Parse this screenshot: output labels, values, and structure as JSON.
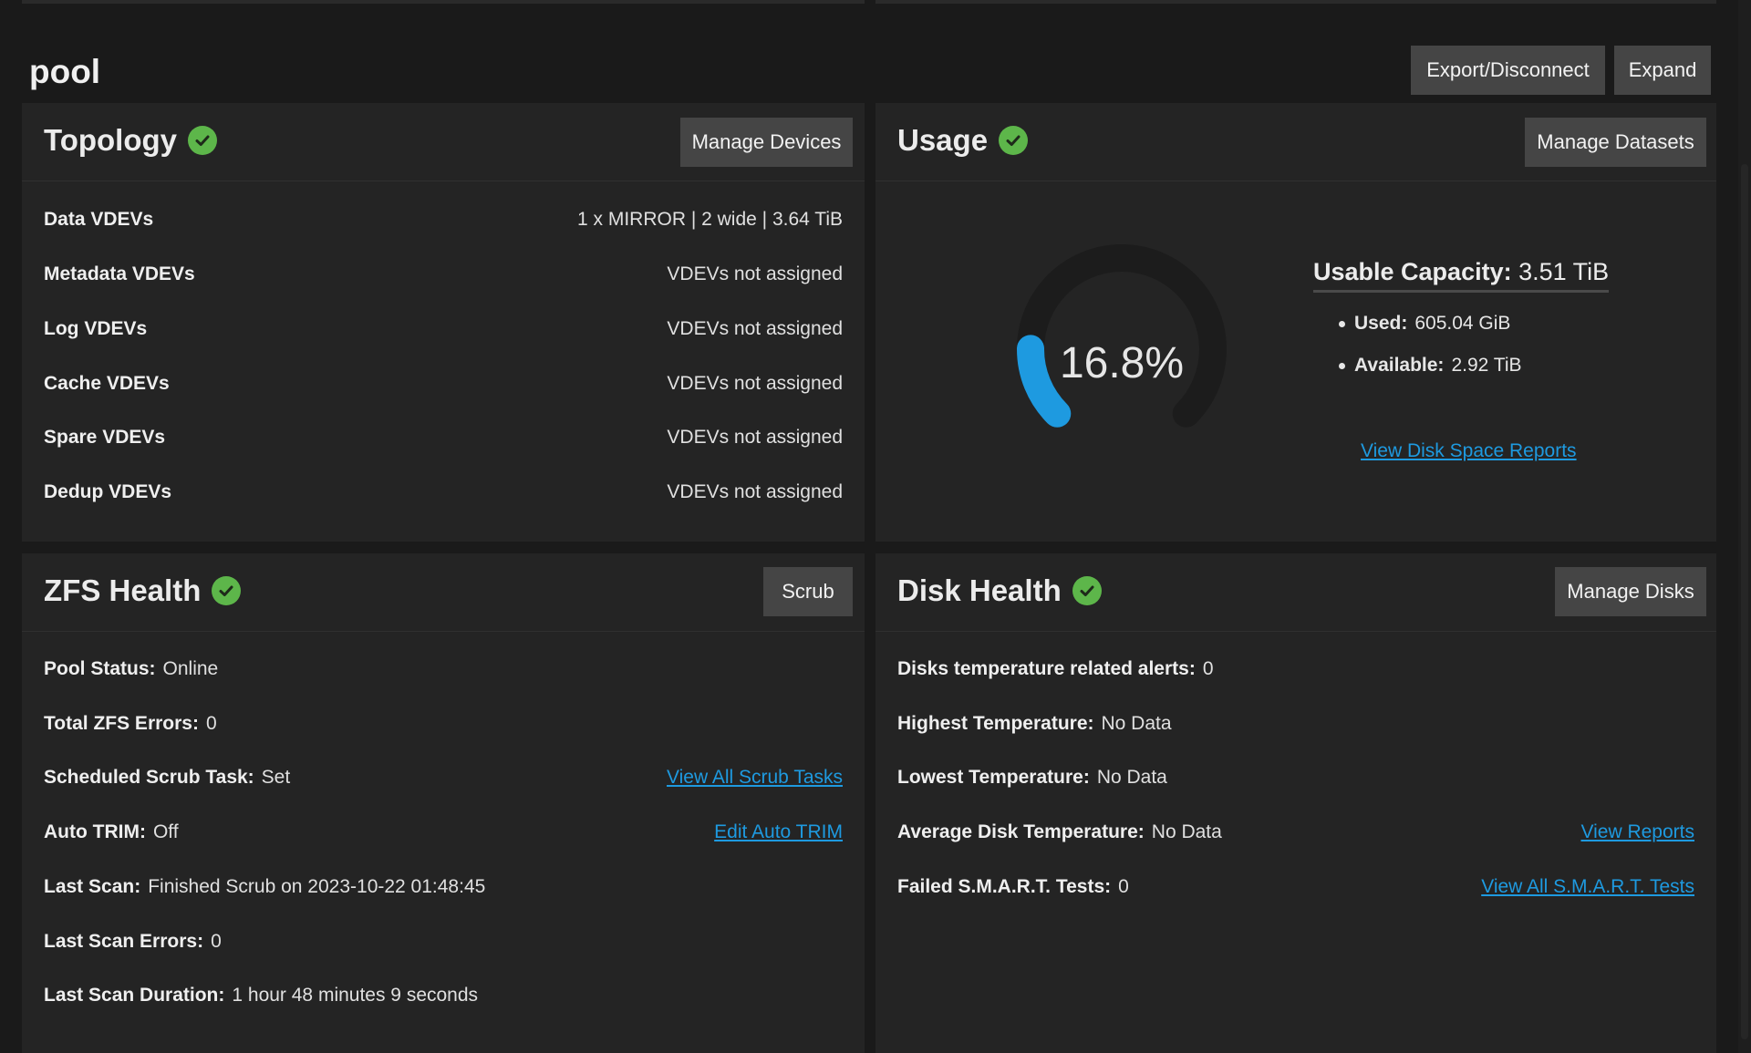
{
  "pool": {
    "title": "pool",
    "export_label": "Export/Disconnect",
    "expand_label": "Expand"
  },
  "topology": {
    "title": "Topology",
    "button": "Manage Devices",
    "rows": [
      {
        "label": "Data VDEVs",
        "value": "1 x MIRROR | 2 wide | 3.64 TiB"
      },
      {
        "label": "Metadata VDEVs",
        "value": "VDEVs not assigned"
      },
      {
        "label": "Log VDEVs",
        "value": "VDEVs not assigned"
      },
      {
        "label": "Cache VDEVs",
        "value": "VDEVs not assigned"
      },
      {
        "label": "Spare VDEVs",
        "value": "VDEVs not assigned"
      },
      {
        "label": "Dedup VDEVs",
        "value": "VDEVs not assigned"
      }
    ]
  },
  "usage": {
    "title": "Usage",
    "button": "Manage Datasets",
    "percent_text": "16.8%",
    "percent_value": 16.8,
    "capacity_label": "Usable Capacity:",
    "capacity_value": "3.51 TiB",
    "used_label": "Used:",
    "used_value": "605.04 GiB",
    "available_label": "Available:",
    "available_value": "2.92 TiB",
    "reports_link": "View Disk Space Reports"
  },
  "zfs_health": {
    "title": "ZFS Health",
    "button": "Scrub",
    "rows": [
      {
        "label": "Pool Status:",
        "value": "Online"
      },
      {
        "label": "Total ZFS Errors:",
        "value": "0"
      },
      {
        "label": "Scheduled Scrub Task:",
        "value": "Set",
        "link": "View All Scrub Tasks"
      },
      {
        "label": "Auto TRIM:",
        "value": "Off",
        "link": "Edit Auto TRIM"
      },
      {
        "label": "Last Scan:",
        "value": "Finished Scrub on 2023-10-22 01:48:45"
      },
      {
        "label": "Last Scan Errors:",
        "value": "0"
      },
      {
        "label": "Last Scan Duration:",
        "value": "1 hour 48 minutes 9 seconds"
      }
    ]
  },
  "disk_health": {
    "title": "Disk Health",
    "button": "Manage Disks",
    "rows": [
      {
        "label": "Disks temperature related alerts:",
        "value": "0"
      },
      {
        "label": "Highest Temperature:",
        "value": "No Data"
      },
      {
        "label": "Lowest Temperature:",
        "value": "No Data"
      },
      {
        "label": "Average Disk Temperature:",
        "value": "No Data",
        "link": "View Reports"
      },
      {
        "label": "Failed S.M.A.R.T. Tests:",
        "value": "0",
        "link": "View All S.M.A.R.T. Tests"
      }
    ]
  },
  "colors": {
    "accent": "#1e9ae0",
    "healthy": "#5db64a",
    "gauge_track": "#1c1c1c"
  }
}
